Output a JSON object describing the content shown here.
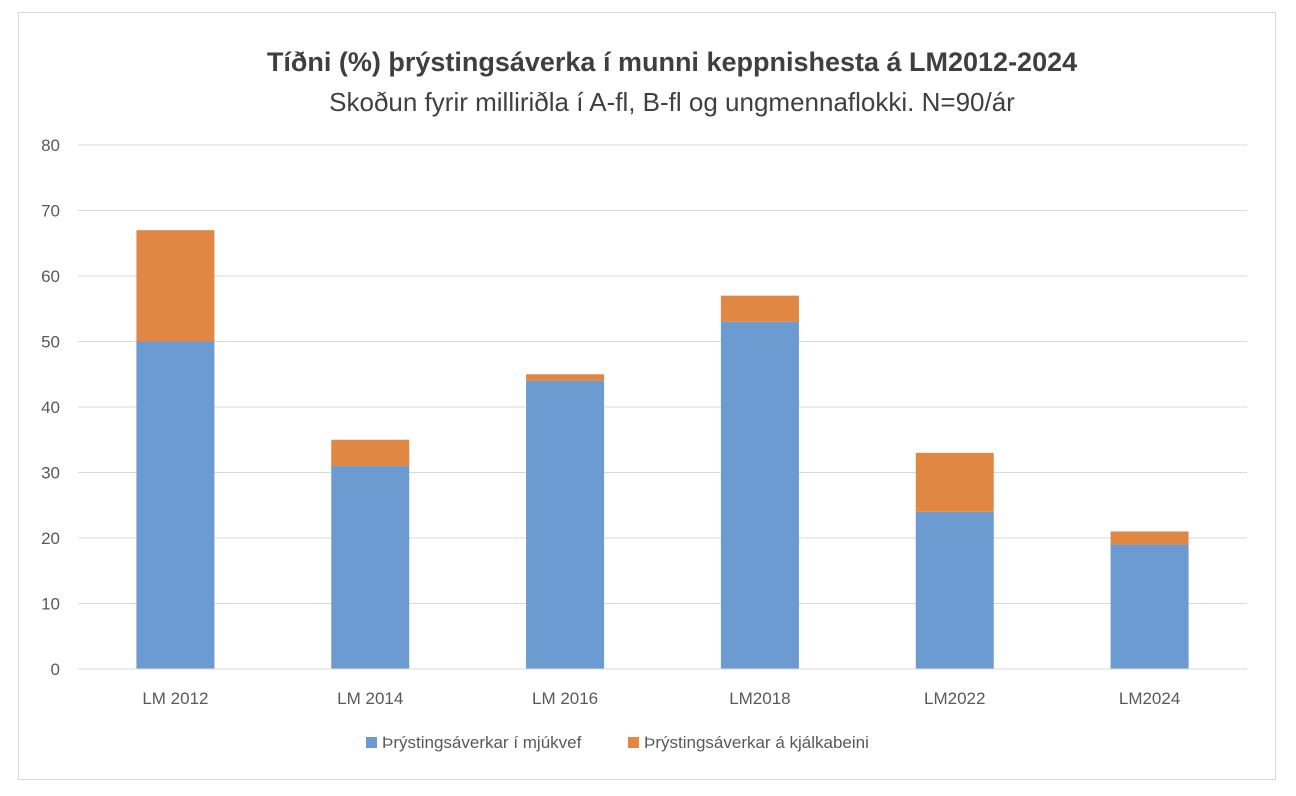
{
  "chart_data": {
    "type": "bar",
    "stacked": true,
    "title": "Tíðni (%) þrýstingsáverka í munni keppnishesta á LM2012-2024",
    "subtitle": "Skoðun fyrir milliriðla í A-fl, B-fl og ungmennaflokki.  N=90/ár",
    "categories": [
      "LM 2012",
      "LM 2014",
      "LM 2016",
      "LM2018",
      "LM2022",
      "LM2024"
    ],
    "series": [
      {
        "name": "Þrýstingsáverkar í mjúkvef",
        "color": "#6b9bd1",
        "values": [
          50,
          31,
          44,
          53,
          24,
          19
        ]
      },
      {
        "name": "Þrýstingsáverkar á kjálkabeini",
        "color": "#e08843",
        "values": [
          17,
          4,
          1,
          4,
          9,
          2
        ]
      }
    ],
    "ylim": [
      0,
      80
    ],
    "yticks": [
      "0",
      "10",
      "20",
      "30",
      "40",
      "50",
      "60",
      "70",
      "80"
    ],
    "grid": true,
    "legend_position": "bottom"
  }
}
